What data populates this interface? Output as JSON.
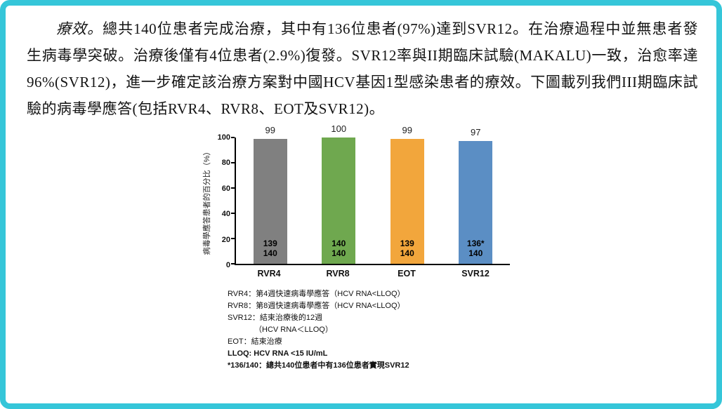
{
  "page": {
    "frame_color": "#35c6d9"
  },
  "paragraph": {
    "lead": "療效。",
    "body": "總共140位患者完成治療，其中有136位患者(97%)達到SVR12。在治療過程中並無患者發生病毒學突破。治療後僅有4位患者(2.9%)復發。SVR12率與II期臨床試驗(MAKALU)一致，治愈率達96%(SVR12)，進一步確定該治療方案對中國HCV基因1型感染患者的療效。下圖載列我們III期臨床試驗的病毒學應答(包括RVR4、RVR8、EOT及SVR12)。"
  },
  "chart_data": {
    "type": "bar",
    "title": "",
    "xlabel": "",
    "ylabel": "病毒學應答患者的百分比（%）",
    "ylim": [
      0,
      100
    ],
    "yticks": [
      0,
      20,
      40,
      60,
      80,
      100
    ],
    "grid": false,
    "legend": false,
    "categories": [
      "RVR4",
      "RVR8",
      "EOT",
      "SVR12"
    ],
    "values": [
      99,
      100,
      99,
      97
    ],
    "bar_colors": [
      "#808080",
      "#6fa84f",
      "#f2a63c",
      "#5b8ec4"
    ],
    "bars": [
      {
        "label": "99",
        "numerator": "139",
        "denominator": "140"
      },
      {
        "label": "100",
        "numerator": "140",
        "denominator": "140"
      },
      {
        "label": "99",
        "numerator": "139",
        "denominator": "140"
      },
      {
        "label": "97",
        "numerator": "136*",
        "denominator": "140"
      }
    ]
  },
  "footnotes": [
    "RVR4：第4週快速病毒學應答（HCV RNA<LLOQ）",
    "RVR8：第8週快速病毒學應答（HCV RNA<LLOQ）",
    "SVR12：結束治療後的12週",
    "（HCV RNA＜LLOQ）",
    "EOT：結束治療",
    "LLOQ: HCV RNA <15 IU/mL",
    "*136/140：總共140位患者中有136位患者實現SVR12"
  ]
}
